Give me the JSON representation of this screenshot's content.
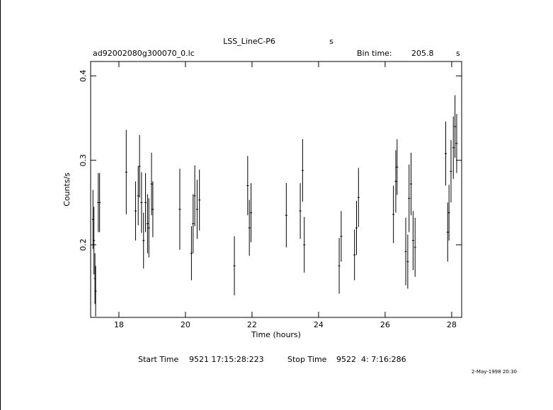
{
  "chart_data": {
    "type": "errorbar",
    "title": "LSS_LineC-P6",
    "title_unit": "s",
    "file_name": "ad92002080g300070_0.lc",
    "bin_time_label": "Bin time:",
    "bin_time": "205.8",
    "bin_time_unit": "s",
    "x_label": "Time (hours)",
    "y_label": "Counts/s",
    "start_label": "Start Time",
    "start_time": "9521 17:15:28:223",
    "stop_label": "Stop Time",
    "stop_time": "9522  4: 7:16:286",
    "date": "2-May-1998 20:30",
    "xlim": [
      17.15,
      28.3
    ],
    "xticks": [
      18,
      20,
      22,
      24,
      26,
      28
    ],
    "ylim": [
      0.114,
      0.417
    ],
    "yticks": [
      0.2,
      0.3,
      0.4
    ],
    "color": "#000000",
    "x": [
      17.22,
      17.25,
      17.28,
      17.3,
      17.38,
      17.42,
      18.22,
      18.5,
      18.58,
      18.62,
      18.68,
      18.74,
      18.8,
      18.86,
      18.9,
      18.98,
      19.02,
      19.83,
      20.18,
      20.23,
      20.28,
      20.35,
      20.42,
      21.47,
      21.87,
      21.92,
      21.97,
      23.03,
      23.45,
      23.52,
      23.57,
      24.62,
      24.68,
      25.08,
      25.14,
      25.2,
      26.25,
      26.32,
      26.36,
      26.62,
      26.68,
      26.72,
      26.78,
      26.84,
      26.9,
      27.82,
      27.88,
      27.92,
      27.98,
      28.05,
      28.1,
      28.15
    ],
    "values": [
      0.23,
      0.205,
      0.16,
      0.145,
      0.25,
      0.25,
      0.286,
      0.24,
      0.258,
      0.293,
      0.25,
      0.205,
      0.25,
      0.225,
      0.22,
      0.272,
      0.242,
      0.242,
      0.19,
      0.225,
      0.258,
      0.242,
      0.253,
      0.175,
      0.27,
      0.22,
      0.238,
      0.235,
      0.24,
      0.288,
      0.2,
      0.175,
      0.21,
      0.188,
      0.22,
      0.256,
      0.236,
      0.275,
      0.292,
      0.192,
      0.18,
      0.255,
      0.272,
      0.205,
      0.197,
      0.308,
      0.215,
      0.238,
      0.287,
      0.315,
      0.34,
      0.32
    ],
    "yerr": [
      0.035,
      0.04,
      0.03,
      0.03,
      0.035,
      0.035,
      0.05,
      0.035,
      0.035,
      0.037,
      0.036,
      0.033,
      0.035,
      0.035,
      0.035,
      0.037,
      0.033,
      0.048,
      0.032,
      0.035,
      0.036,
      0.035,
      0.036,
      0.035,
      0.035,
      0.033,
      0.035,
      0.038,
      0.033,
      0.037,
      0.033,
      0.033,
      0.03,
      0.03,
      0.032,
      0.035,
      0.034,
      0.037,
      0.033,
      0.04,
      0.032,
      0.04,
      0.037,
      0.035,
      0.035,
      0.038,
      0.035,
      0.033,
      0.037,
      0.037,
      0.037,
      0.035
    ]
  }
}
